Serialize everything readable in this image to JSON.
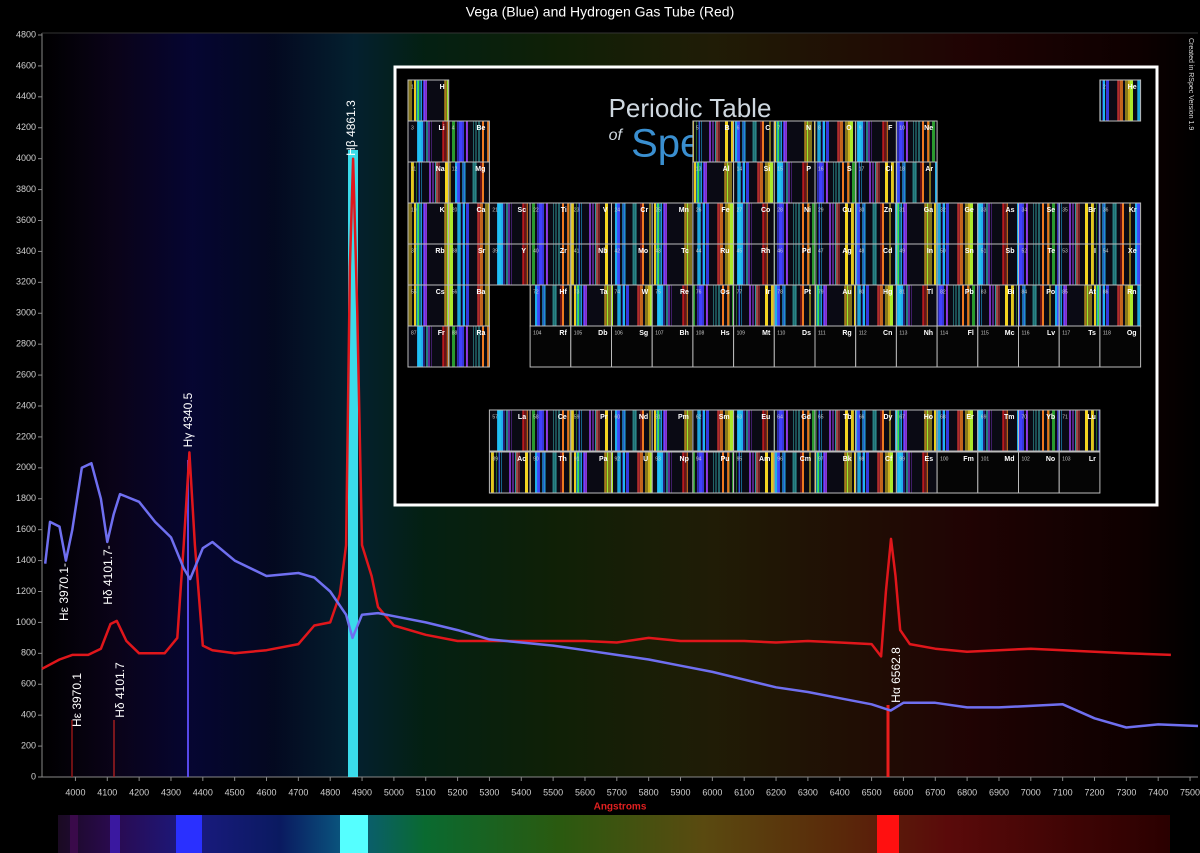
{
  "chart_data": {
    "type": "line",
    "title": "Vega (Blue) and Hydrogen Gas Tube (Red)",
    "xlabel": "Angstroms",
    "xlim": [
      3895,
      7525
    ],
    "ylim": [
      0,
      4800
    ],
    "xticks": [
      4000,
      4100,
      4200,
      4300,
      4400,
      4500,
      4600,
      4700,
      4800,
      4900,
      5000,
      5100,
      5200,
      5300,
      5400,
      5500,
      5600,
      5700,
      5800,
      5900,
      6000,
      6100,
      6200,
      6300,
      6400,
      6500,
      6600,
      6700,
      6800,
      6900,
      7000,
      7100,
      7200,
      7300,
      7400,
      7500
    ],
    "yticks": [
      0,
      200,
      400,
      600,
      800,
      1000,
      1200,
      1400,
      1600,
      1800,
      2000,
      2200,
      2400,
      2600,
      2800,
      3000,
      3200,
      3400,
      3600,
      3800,
      4000,
      4200,
      4400,
      4600,
      4800
    ],
    "grid": false,
    "series": [
      {
        "name": "Hydrogen Gas Tube (Red)",
        "color": "#e0161b",
        "x": [
          3895,
          3950,
          3990,
          4040,
          4080,
          4110,
          4130,
          4160,
          4200,
          4280,
          4320,
          4340,
          4358,
          4375,
          4400,
          4430,
          4500,
          4600,
          4700,
          4750,
          4800,
          4830,
          4850,
          4862,
          4872,
          4885,
          4900,
          4930,
          4950,
          5000,
          5100,
          5200,
          5300,
          5400,
          5500,
          5600,
          5700,
          5800,
          5900,
          6000,
          6100,
          6200,
          6300,
          6400,
          6500,
          6530,
          6545,
          6561,
          6575,
          6590,
          6620,
          6700,
          6800,
          6900,
          7000,
          7100,
          7200,
          7300,
          7440
        ],
        "values": [
          700,
          760,
          790,
          790,
          830,
          990,
          1010,
          880,
          800,
          800,
          900,
          1500,
          2100,
          1500,
          850,
          820,
          800,
          820,
          860,
          980,
          1000,
          1180,
          1500,
          3300,
          4000,
          3000,
          1500,
          1300,
          1100,
          980,
          920,
          880,
          880,
          880,
          880,
          880,
          870,
          900,
          880,
          880,
          880,
          870,
          880,
          870,
          860,
          780,
          1200,
          1540,
          1300,
          950,
          860,
          830,
          810,
          820,
          830,
          820,
          810,
          800,
          790
        ]
      },
      {
        "name": "Vega (Blue)",
        "color": "#6f6ff0",
        "x": [
          3905,
          3920,
          3950,
          3970,
          3990,
          4020,
          4050,
          4080,
          4100,
          4120,
          4140,
          4200,
          4250,
          4300,
          4340,
          4360,
          4400,
          4430,
          4500,
          4600,
          4700,
          4750,
          4800,
          4850,
          4870,
          4900,
          4950,
          5000,
          5100,
          5200,
          5300,
          5400,
          5500,
          5600,
          5700,
          5800,
          5900,
          6000,
          6100,
          6200,
          6300,
          6400,
          6500,
          6560,
          6600,
          6700,
          6800,
          6900,
          7000,
          7100,
          7200,
          7300,
          7400,
          7525
        ],
        "values": [
          1380,
          1650,
          1620,
          1400,
          1600,
          2000,
          2030,
          1800,
          1520,
          1700,
          1830,
          1780,
          1650,
          1550,
          1350,
          1280,
          1480,
          1520,
          1400,
          1300,
          1320,
          1290,
          1200,
          1050,
          900,
          1050,
          1060,
          1040,
          1000,
          950,
          890,
          870,
          850,
          820,
          790,
          760,
          720,
          680,
          630,
          580,
          550,
          510,
          470,
          430,
          480,
          480,
          450,
          450,
          460,
          470,
          380,
          320,
          340,
          330
        ]
      }
    ],
    "annotations": [
      "Hε 3970.1",
      "Hδ 4101.7",
      "Hγ 4340.5",
      "Hβ 4861.3",
      "Hα 6562.8",
      "Hε 3970.1-",
      "Hδ 4101.7-"
    ]
  },
  "credit": "Created in RSpec Version 1.9",
  "inset": {
    "title_line1": "Periodic Table",
    "title_of": "of",
    "title_line2": "Spectra",
    "numbers": [
      1,
      2,
      3,
      4,
      5,
      6,
      7,
      8,
      9,
      10,
      11,
      12,
      13,
      14,
      15,
      16,
      17,
      18,
      19,
      20,
      21,
      22,
      23,
      24,
      25,
      26,
      27,
      28,
      29,
      30,
      31,
      32,
      33,
      34,
      35,
      36,
      37,
      38,
      39,
      40,
      41,
      42,
      43,
      44,
      45,
      46,
      47,
      48,
      49,
      50,
      51,
      52,
      53,
      54,
      55,
      56,
      57,
      58,
      59,
      60,
      61,
      62,
      63,
      64,
      65,
      66,
      67,
      68,
      69,
      70,
      71,
      72,
      73,
      74,
      75,
      76,
      77,
      78,
      79,
      80,
      81,
      82,
      83,
      84,
      85,
      86,
      87,
      88,
      89,
      90,
      91,
      92,
      93,
      94,
      95,
      96,
      97,
      98,
      99,
      100,
      101,
      102,
      103,
      104,
      105,
      106,
      107,
      108,
      109,
      110,
      111,
      112,
      113,
      114,
      115,
      116,
      117,
      118
    ],
    "symbols": [
      "H",
      "He",
      "Li",
      "Be",
      "B",
      "C",
      "N",
      "O",
      "F",
      "Ne",
      "Na",
      "Mg",
      "Al",
      "Si",
      "P",
      "S",
      "Cl",
      "Ar",
      "K",
      "Ca",
      "Sc",
      "Ti",
      "V",
      "Cr",
      "Mn",
      "Fe",
      "Co",
      "Ni",
      "Cu",
      "Zn",
      "Ga",
      "Ge",
      "As",
      "Se",
      "Br",
      "Kr",
      "Rb",
      "Sr",
      "Y",
      "Zr",
      "Nb",
      "Mo",
      "Tc",
      "Ru",
      "Rh",
      "Pd",
      "Ag",
      "Cd",
      "In",
      "Sn",
      "Sb",
      "Te",
      "I",
      "Xe",
      "Cs",
      "Ba",
      "La",
      "Ce",
      "Pr",
      "Nd",
      "Pm",
      "Sm",
      "Eu",
      "Gd",
      "Tb",
      "Dy",
      "Ho",
      "Er",
      "Tm",
      "Yb",
      "Lu",
      "Hf",
      "Ta",
      "W",
      "Re",
      "Os",
      "Ir",
      "Pt",
      "Au",
      "Hg",
      "Tl",
      "Pb",
      "Bi",
      "Po",
      "At",
      "Rn",
      "Fr",
      "Ra",
      "Ac",
      "Th",
      "Pa",
      "U",
      "Np",
      "Pu",
      "Am",
      "Cm",
      "Bk",
      "Cf",
      "Es",
      "Fm",
      "Md",
      "No",
      "Lr",
      "Rf",
      "Db",
      "Sg",
      "Bh",
      "Hs",
      "Mt",
      "Ds",
      "Rg",
      "Cn",
      "Nh",
      "Fl",
      "Mc",
      "Lv",
      "Ts",
      "Og"
    ]
  }
}
